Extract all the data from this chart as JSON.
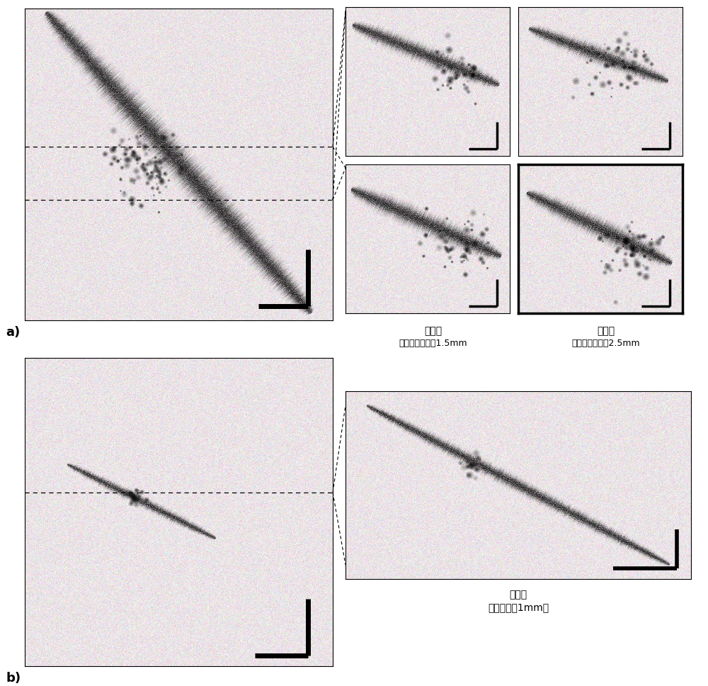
{
  "fig_width": 10.0,
  "fig_height": 9.68,
  "bg_color": "#ffffff",
  "label_a": "a)",
  "label_b": "b)",
  "text_top_left_1": "正视图",
  "text_top_left_2": "重建间隔大约为1.5mm",
  "text_top_right_1": "正视图",
  "text_top_right_2": "重建间隔大约为2.5mm",
  "text_bottom_1": "正视图",
  "text_bottom_2": "焦点在大约1mm处"
}
